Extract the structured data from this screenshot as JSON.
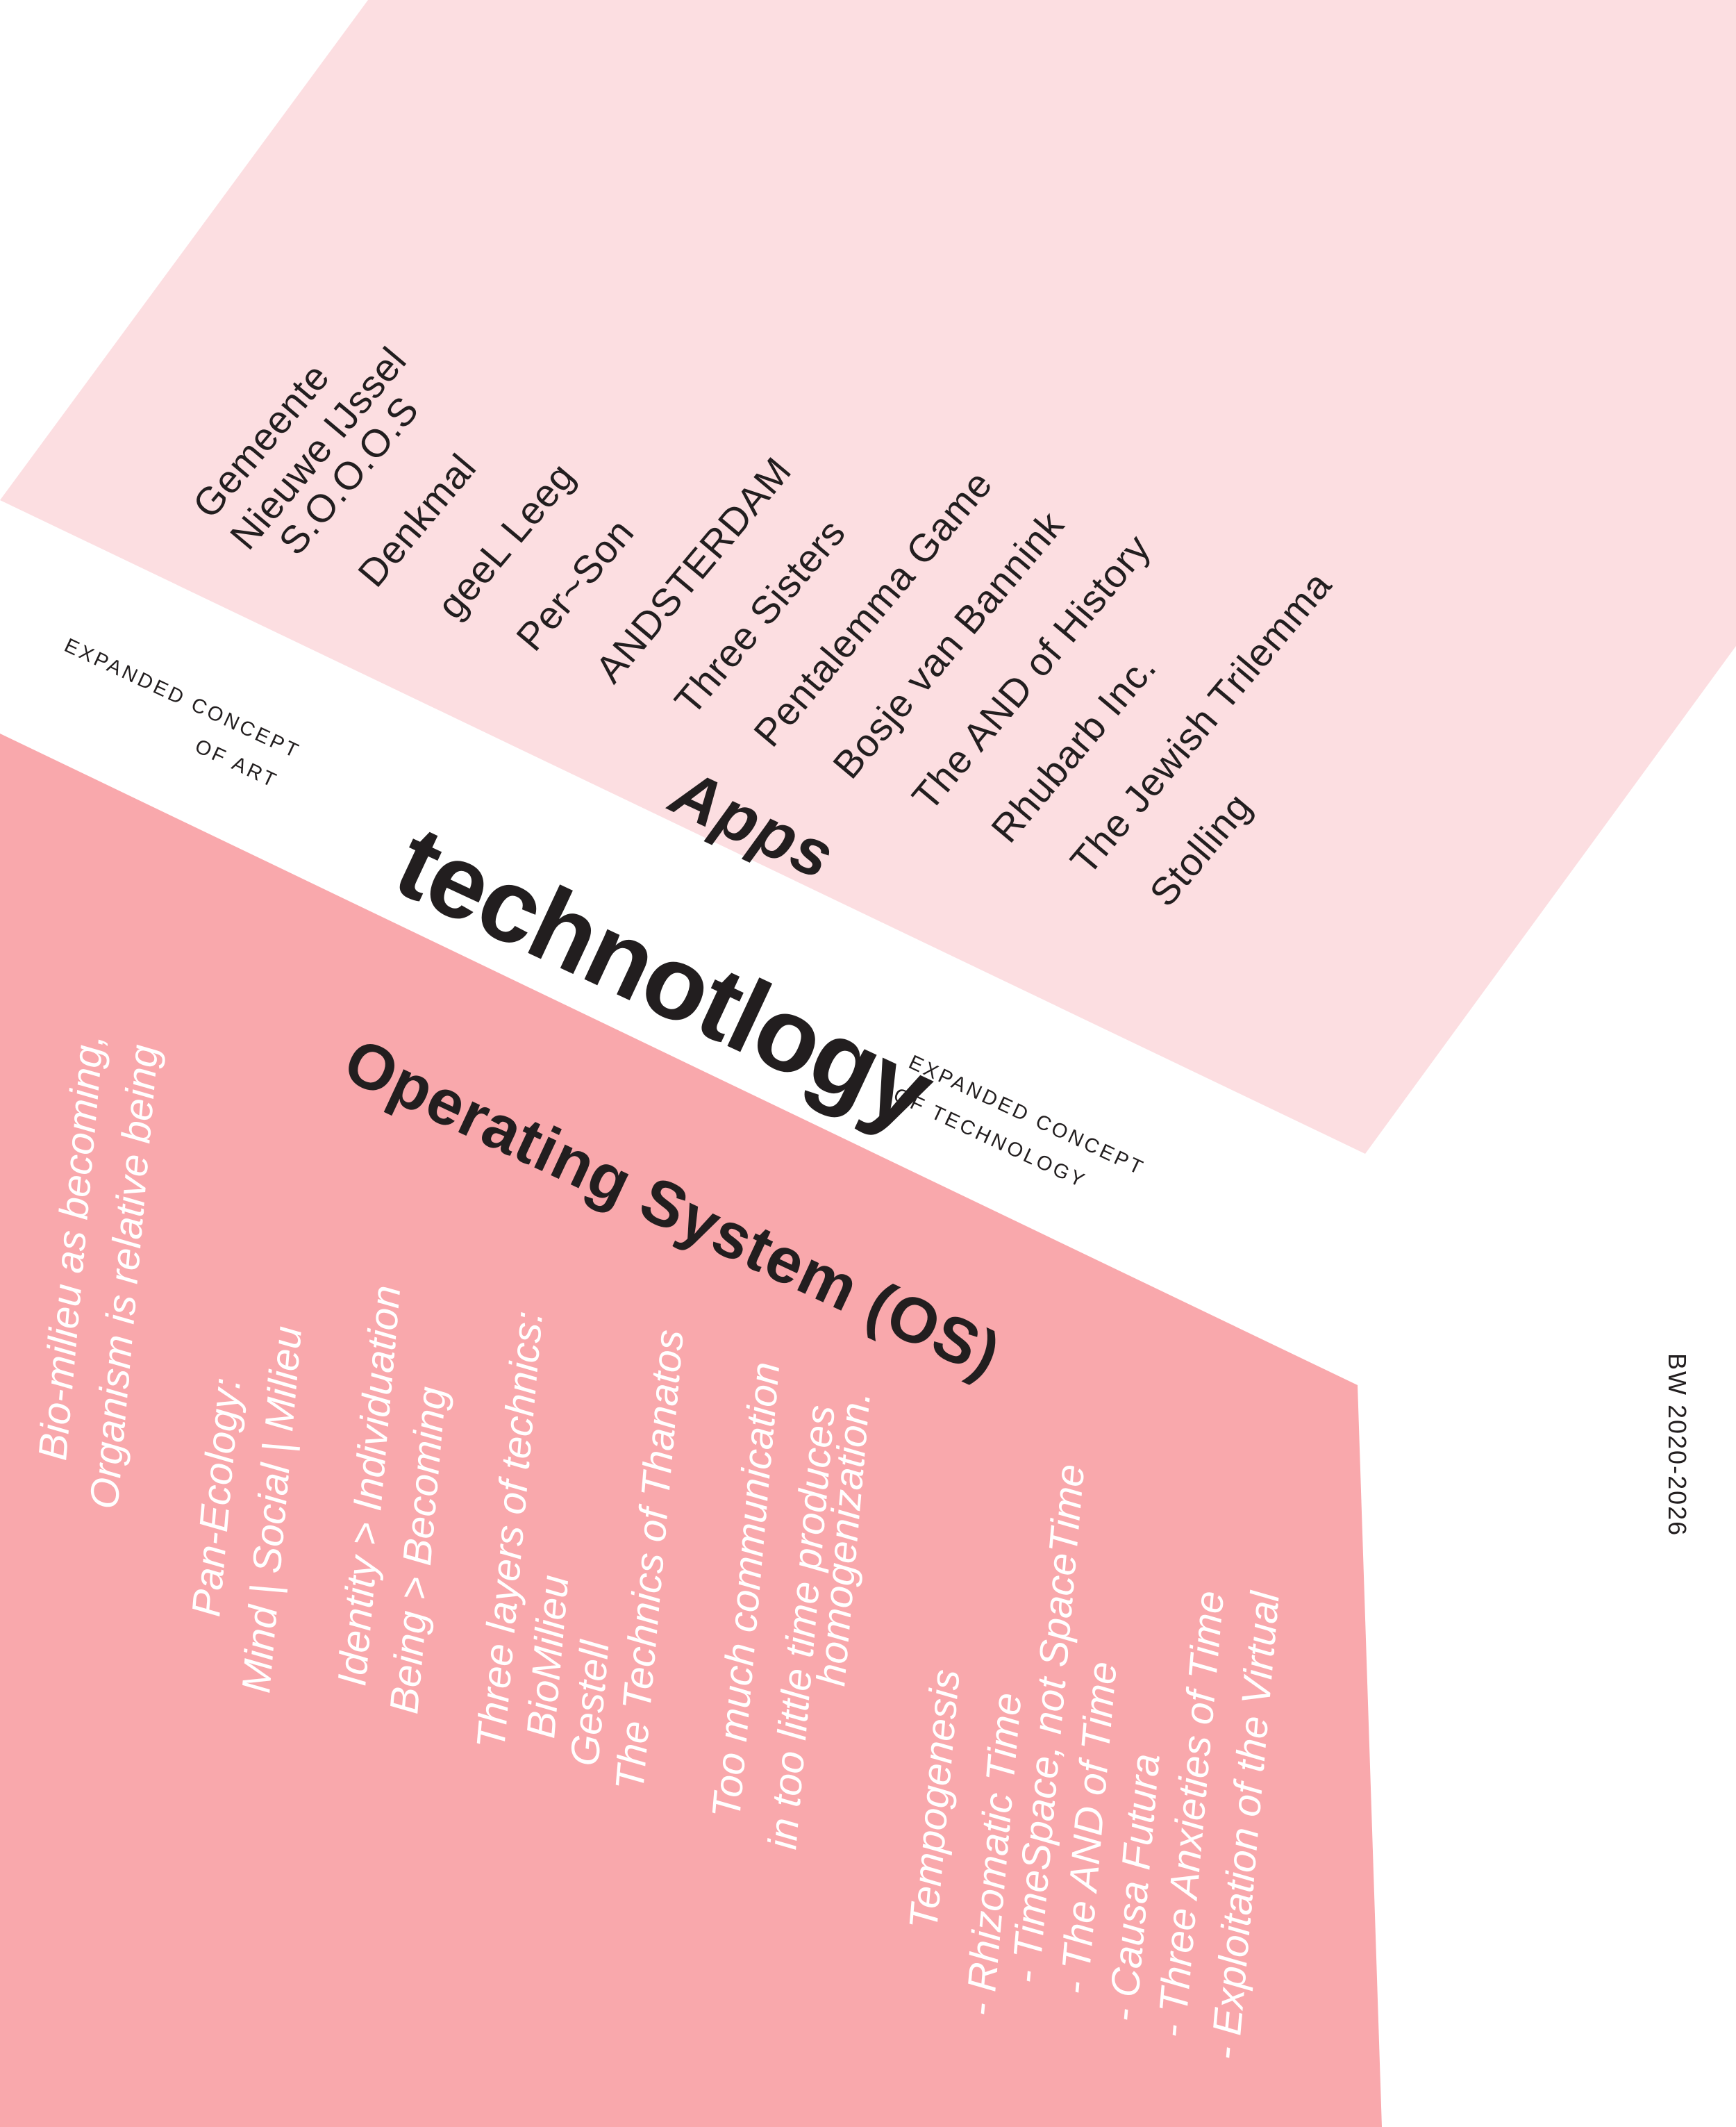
{
  "poster": {
    "title": "technotlogy",
    "left_caption": {
      "line1": "EXPANDED CONCEPT",
      "line2": "OF ART"
    },
    "right_caption": {
      "line1": "EXPANDED CONCEPT",
      "line2": "OF TECHNOLOGY"
    },
    "credit": "BW 2020-2026"
  },
  "colors": {
    "light_pink": "#fcdee1",
    "dark_pink": "#f9a8ac",
    "ink": "#221e1f",
    "white": "#ffffff"
  },
  "apps_band": {
    "label": "Apps",
    "items": [
      {
        "lines": [
          "Gemeente",
          "Nieuwe IJssel"
        ]
      },
      {
        "lines": [
          "S.O.O.O.S"
        ]
      },
      {
        "lines": [
          "Denkmal"
        ]
      },
      {
        "lines": [
          "geeL Leeg"
        ]
      },
      {
        "lines": [
          "Per~Son"
        ]
      },
      {
        "lines": [
          "ANDSTERDAM"
        ]
      },
      {
        "lines": [
          "Three Sisters"
        ]
      },
      {
        "lines": [
          "Pentalemma Game"
        ]
      },
      {
        "lines": [
          "Bosje van Bannink"
        ]
      },
      {
        "lines": [
          "The AND of History"
        ]
      },
      {
        "lines": [
          "Rhubarb Inc."
        ]
      },
      {
        "lines": [
          "The Jewish Trilemma"
        ]
      },
      {
        "lines": [
          "Stolling"
        ]
      }
    ]
  },
  "os_band": {
    "heading": "Operating System (OS)",
    "blocks": [
      {
        "lines": [
          "Bio-milieu as becoming,",
          "Organism is relative being"
        ]
      },
      {
        "lines": [
          "Pan-Ecology:",
          "Mind | Social | Milieu"
        ]
      },
      {
        "lines": [
          "Identity > Individuation",
          "Being > Becoming"
        ]
      },
      {
        "lines": [
          "Three layers of technics:",
          "BioMilieu",
          "Gestell",
          "The Technics of Thanatos"
        ]
      },
      {
        "lines": [
          "Too much communication",
          "in too little time produces",
          "homogenization."
        ]
      },
      {
        "lines": [
          "Tempogenesis",
          "- Rhizomatic Time",
          "- TimeSpace, not SpaceTime",
          "- The AND of Time",
          "- Causa Futura",
          "- Three Anxieties of Time",
          "- Exploitation of the Virtual"
        ]
      }
    ]
  }
}
